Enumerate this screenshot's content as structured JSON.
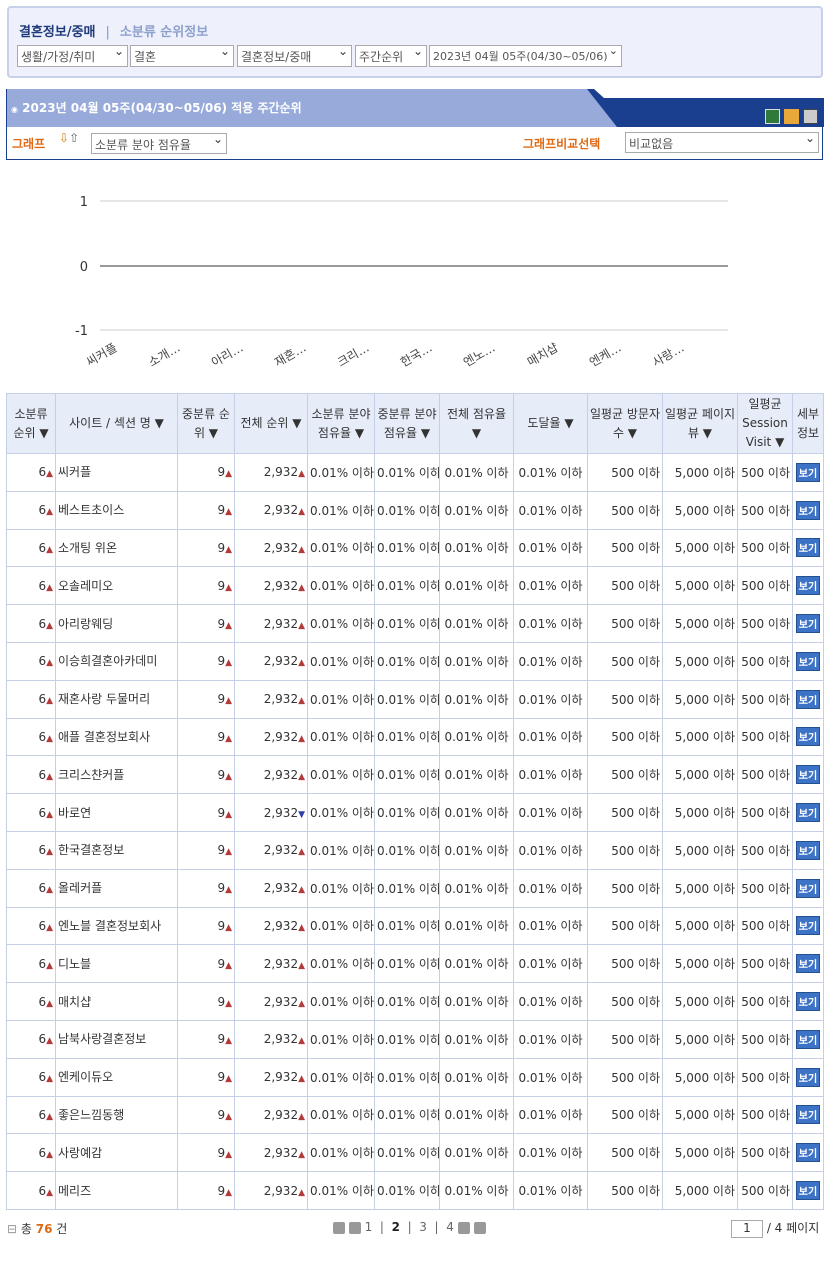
{
  "breadcrumb": {
    "current": "결혼정보/중매",
    "separator": "|",
    "sub": "소분류 순위정보"
  },
  "filters": [
    "생활/가정/취미",
    "결혼",
    "결혼정보/중매",
    "주간순위",
    "2023년 04월 05주(04/30~05/06)"
  ],
  "panel": {
    "title": "2023년 04월 05주(04/30~05/06) 적용 주간순위",
    "graph_label": "그래프",
    "graph_select": "소분류 분야 점유율",
    "compare_label": "그래프비교선택",
    "compare_select": "비교없음",
    "icons": [
      "excel-icon",
      "folder-icon",
      "print-icon"
    ]
  },
  "chart_data": {
    "type": "line",
    "y_ticks": [
      "1",
      "0",
      "-1"
    ],
    "ylim": [
      -1,
      1
    ],
    "categories": [
      "씨커플",
      "소개…",
      "아리…",
      "재혼…",
      "크리…",
      "한국…",
      "엔노…",
      "매치샵",
      "엔케…",
      "사랑…"
    ],
    "values": [
      0,
      0,
      0,
      0,
      0,
      0,
      0,
      0,
      0,
      0
    ],
    "grid": true
  },
  "table": {
    "headers": [
      "소분류 순위 ▼",
      "사이트 / 섹션 명 ▼",
      "중분류 순위 ▼",
      "전체 순위 ▼",
      "소분류 분야 점유율 ▼",
      "중분류 분야 점유율 ▼",
      "전체 점유율 ▼",
      "도달율 ▼",
      "일평균 방문자 수 ▼",
      "일평균 페이지 뷰 ▼",
      "일평균 Session Visit ▼",
      "세부 정보"
    ],
    "sites": [
      "씨커플",
      "베스트초이스",
      "소개팅 위온",
      "오솔레미오",
      "아리랑웨딩",
      "이승희결혼아카데미",
      "재혼사랑 두물머리",
      "애플 결혼정보회사",
      "크리스챤커플",
      "바로연",
      "한국결혼정보",
      "올레커플",
      "엔노블 결혼정보회사",
      "디노블",
      "매치샵",
      "남북사랑결혼정보",
      "엔케이듀오",
      "좋은느낌동행",
      "사랑예감",
      "메리즈"
    ],
    "overall_trend": [
      "up",
      "up",
      "up",
      "up",
      "up",
      "up",
      "up",
      "up",
      "up",
      "down",
      "up",
      "up",
      "up",
      "up",
      "up",
      "up",
      "up",
      "up",
      "up",
      "up"
    ],
    "small_rank": "6",
    "mid_rank": "9",
    "overall_rank": "2,932",
    "share": "0.01% 이하",
    "visitors": "500 이하",
    "pageviews": "5,000 이하",
    "session": "500 이하",
    "detail_button": "보기"
  },
  "footer": {
    "total_prefix": "총",
    "total": "76",
    "total_suffix": "건",
    "pages": [
      "1",
      "2",
      "3",
      "4"
    ],
    "current_page": "2",
    "page_input": "1",
    "page_total": "/ 4 페이지"
  }
}
